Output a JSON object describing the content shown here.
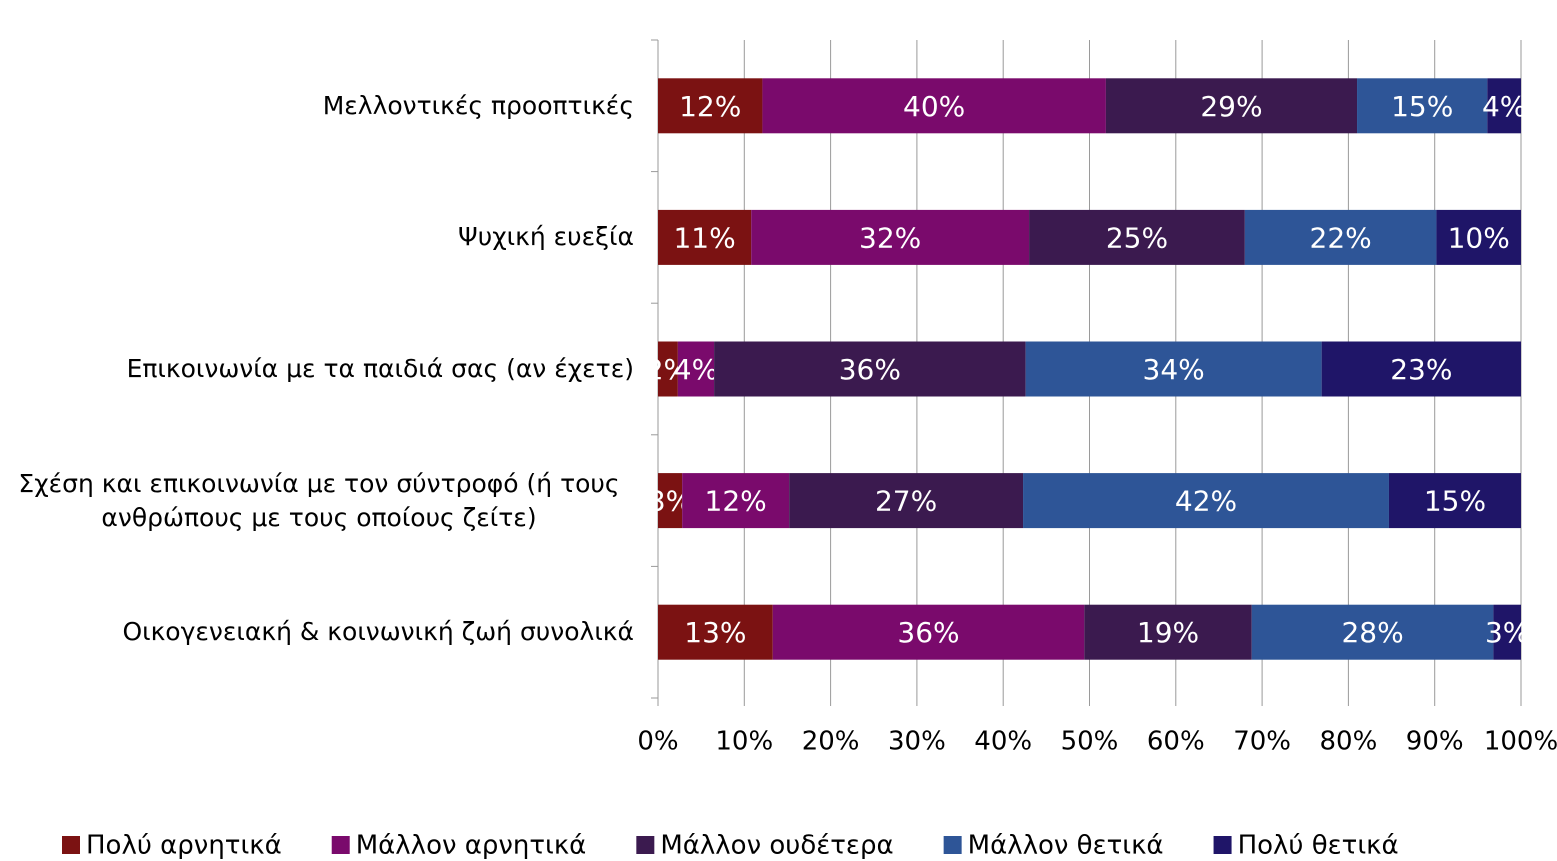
{
  "chart_data": {
    "type": "stacked-bar-horizontal",
    "categories": [
      "Μελλοντικές προοπτικές",
      "Ψυχική ευεξία",
      "Επικοινωνία με τα παιδιά σας (αν έχετε)",
      "Σχέση και επικοινωνία με τον σύντροφό (ή τους ανθρώπους με τους οποίους ζείτε)",
      "Οικογενειακή & κοινωνική ζωή συνολικά"
    ],
    "series": [
      {
        "name": "Πολύ αρνητικά",
        "color": "#7b1212",
        "values": [
          12.1,
          10.8,
          2.3,
          2.8,
          13.3
        ],
        "value_labels": [
          "12%",
          "11%",
          "2%",
          "3%",
          "13%"
        ]
      },
      {
        "name": "Μάλλον αρνητικά",
        "color": "#7a0a6c",
        "values": [
          39.8,
          32.2,
          4.2,
          12.4,
          36.1
        ],
        "value_labels": [
          "40%",
          "32%",
          "4%",
          "12%",
          "36%"
        ]
      },
      {
        "name": "Μάλλον ουδέτερα",
        "color": "#3b1a4f",
        "values": [
          29.1,
          25.0,
          36.1,
          27.1,
          19.4
        ],
        "value_labels": [
          "29%",
          "25%",
          "36%",
          "27%",
          "19%"
        ]
      },
      {
        "name": "Μάλλον θετικά",
        "color": "#2e5597",
        "values": [
          15.1,
          22.2,
          34.3,
          42.4,
          28.0
        ],
        "value_labels": [
          "15%",
          "22%",
          "34%",
          "42%",
          "28%"
        ]
      },
      {
        "name": "Πολύ θετικά",
        "color": "#1f1568",
        "values": [
          3.9,
          9.8,
          23.1,
          15.3,
          3.2
        ],
        "value_labels": [
          "4%",
          "10%",
          "23%",
          "15%",
          "3%"
        ]
      }
    ],
    "xlim": [
      0,
      100
    ],
    "xticks": [
      {
        "value": 0,
        "label": "0%"
      },
      {
        "value": 10,
        "label": "10%"
      },
      {
        "value": 20,
        "label": "20%"
      },
      {
        "value": 30,
        "label": "30%"
      },
      {
        "value": 40,
        "label": "40%"
      },
      {
        "value": 50,
        "label": "50%"
      },
      {
        "value": 60,
        "label": "60%"
      },
      {
        "value": 70,
        "label": "70%"
      },
      {
        "value": 80,
        "label": "80%"
      },
      {
        "value": 90,
        "label": "90%"
      },
      {
        "value": 100,
        "label": "100%"
      }
    ],
    "grid": true,
    "legend": "bottom"
  }
}
